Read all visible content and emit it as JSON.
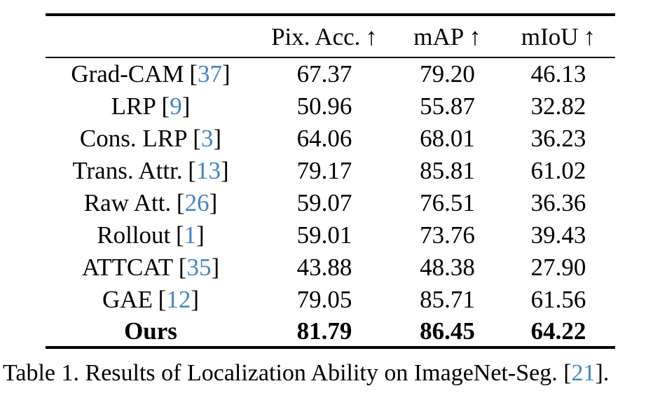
{
  "table": {
    "header": {
      "method_column_label": "",
      "columns": [
        {
          "label": "Pix. Acc.",
          "arrow": "↑"
        },
        {
          "label": "mAP",
          "arrow": "↑"
        },
        {
          "label": "mIoU",
          "arrow": "↑"
        }
      ]
    },
    "rows": [
      {
        "method": "Grad-CAM",
        "cite": "37",
        "values": [
          "67.37",
          "79.20",
          "46.13"
        ],
        "bold": false
      },
      {
        "method": "LRP",
        "cite": "9",
        "values": [
          "50.96",
          "55.87",
          "32.82"
        ],
        "bold": false
      },
      {
        "method": "Cons. LRP",
        "cite": "3",
        "values": [
          "64.06",
          "68.01",
          "36.23"
        ],
        "bold": false
      },
      {
        "method": "Trans. Attr.",
        "cite": "13",
        "values": [
          "79.17",
          "85.81",
          "61.02"
        ],
        "bold": false
      },
      {
        "method": "Raw Att.",
        "cite": "26",
        "values": [
          "59.07",
          "76.51",
          "36.36"
        ],
        "bold": false
      },
      {
        "method": "Rollout",
        "cite": "1",
        "values": [
          "59.01",
          "73.76",
          "39.43"
        ],
        "bold": false
      },
      {
        "method": "ATTCAT",
        "cite": "35",
        "values": [
          "43.88",
          "48.38",
          "27.90"
        ],
        "bold": false
      },
      {
        "method": "GAE",
        "cite": "12",
        "values": [
          "79.05",
          "85.71",
          "61.56"
        ],
        "bold": false
      },
      {
        "method": "Ours",
        "cite": null,
        "values": [
          "81.79",
          "86.45",
          "64.22"
        ],
        "bold": true
      }
    ],
    "bracket_open": "[",
    "bracket_close": "]"
  },
  "caption": {
    "prefix": "Table 1. Results of Localization Ability on ImageNet-Seg. [",
    "cite": "21",
    "suffix": "]."
  },
  "colors": {
    "citation_blue": "#4484c4",
    "text": "#000000",
    "rule": "#000000"
  }
}
